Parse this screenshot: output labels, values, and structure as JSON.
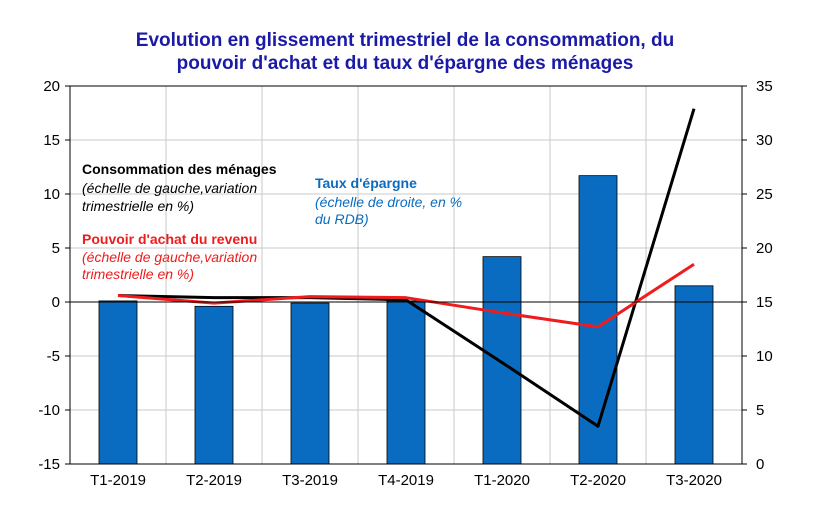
{
  "chart_data": {
    "type": "bar",
    "title_lines": [
      "Evolution en glissement trimestriel de la consommation, du",
      "pouvoir d'achat et du taux d'épargne des ménages"
    ],
    "categories": [
      "T1-2019",
      "T2-2019",
      "T3-2019",
      "T4-2019",
      "T1-2020",
      "T2-2020",
      "T3-2020"
    ],
    "left_axis": {
      "ylim": [
        -15,
        20
      ],
      "ticks": [
        "-15",
        "-10",
        "-5",
        "0",
        "5",
        "10",
        "15",
        "20"
      ]
    },
    "right_axis": {
      "ylim": [
        0,
        35
      ],
      "ticks": [
        "0",
        "5",
        "10",
        "15",
        "20",
        "25",
        "30",
        "35"
      ]
    },
    "grid": true,
    "series": [
      {
        "name": "Taux d'épargne",
        "chart": "bar",
        "axis": "right",
        "color": "#0a6cc0",
        "values": [
          15.1,
          14.6,
          14.9,
          15.1,
          19.2,
          26.7,
          16.5
        ]
      },
      {
        "name": "Consommation des ménages",
        "chart": "line",
        "axis": "left",
        "color": "#000000",
        "values": [
          0.6,
          0.4,
          0.4,
          0.2,
          -5.6,
          -11.5,
          17.9
        ]
      },
      {
        "name": "Pouvoir d'achat du revenu",
        "chart": "line",
        "axis": "left",
        "color": "#ee1c1c",
        "values": [
          0.6,
          -0.1,
          0.5,
          0.4,
          -1.0,
          -2.3,
          3.5
        ]
      }
    ],
    "annotations": {
      "consumption": {
        "title": "Consommation des ménages",
        "lines": [
          "(échelle de gauche,variation",
          "trimestrielle en %)"
        ],
        "color": "#000000"
      },
      "savings": {
        "title": "Taux d'épargne",
        "lines": [
          "(échelle de droite, en %",
          "du RDB)"
        ],
        "color": "#0a6cc0"
      },
      "purchasing": {
        "title": "Pouvoir d'achat du revenu",
        "lines": [
          "(échelle de gauche,variation",
          "trimestrielle en %)"
        ],
        "color": "#ee1c1c"
      }
    }
  }
}
